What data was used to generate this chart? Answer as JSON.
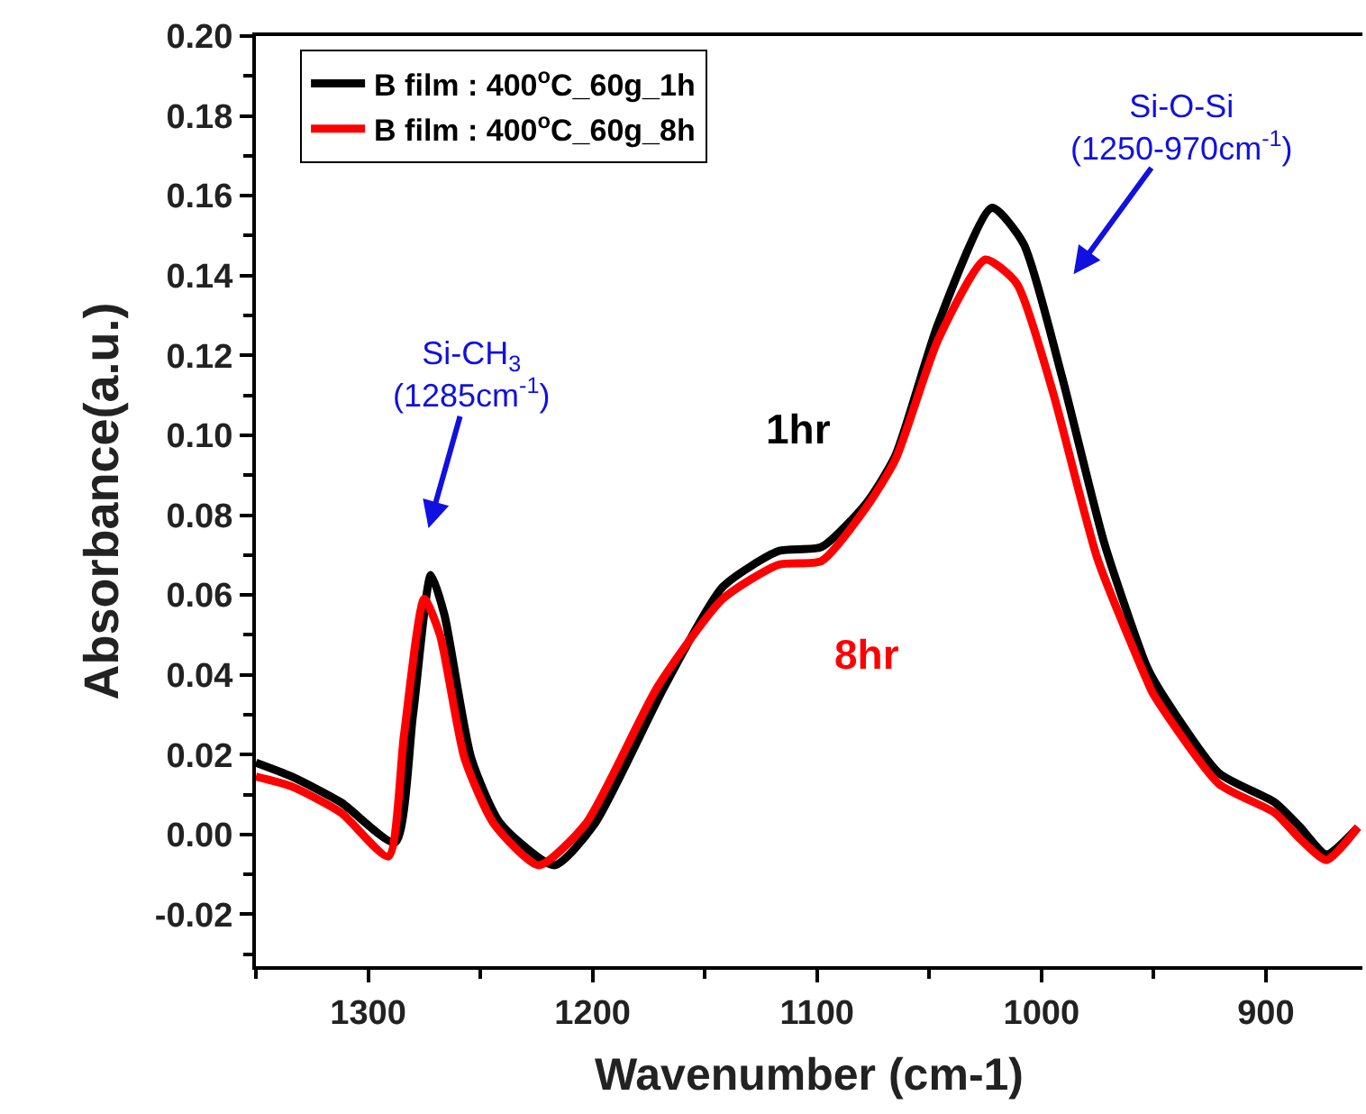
{
  "chart_data": {
    "type": "line",
    "xlabel": "Wavenumber (cm-1)",
    "ylabel": "Absorbance(a.u.)",
    "series": [
      {
        "name": "B film : 400$^{o}$C_60g_1h",
        "color": "#000000",
        "x": [
          1350,
          1334,
          1312,
          1288,
          1280,
          1272,
          1266,
          1254,
          1241,
          1217,
          1199,
          1168,
          1142,
          1117,
          1098,
          1078,
          1065,
          1046,
          1022,
          1008,
          991,
          972,
          953,
          946,
          921,
          896,
          885,
          873,
          859
        ],
        "values": [
          0.018,
          0.0145,
          0.008,
          -0.002,
          0.03,
          0.065,
          0.055,
          0.019,
          0.0027,
          -0.0077,
          0.0027,
          0.037,
          0.062,
          0.071,
          0.072,
          0.083,
          0.095,
          0.128,
          0.157,
          0.148,
          0.115,
          0.073,
          0.042,
          0.035,
          0.0154,
          0.008,
          0.002,
          -0.005,
          0.0018
        ]
      },
      {
        "name": "B film : 400$^{o}$C_60g_8h",
        "color": "#ff0000",
        "x": [
          1350,
          1334,
          1312,
          1291,
          1284,
          1275,
          1268,
          1257,
          1244,
          1224,
          1203,
          1171,
          1142,
          1117,
          1098,
          1078,
          1065,
          1046,
          1025,
          1011,
          995,
          975,
          953,
          950,
          921,
          896,
          885,
          873,
          859
        ],
        "values": [
          0.0145,
          0.012,
          0.0054,
          -0.0055,
          0.025,
          0.059,
          0.05,
          0.019,
          0.0027,
          -0.0077,
          0.0027,
          0.037,
          0.059,
          0.0676,
          0.0685,
          0.082,
          0.094,
          0.124,
          0.144,
          0.138,
          0.111,
          0.069,
          0.0386,
          0.035,
          0.0127,
          0.0054,
          -0.001,
          -0.0064,
          0.0018
        ]
      }
    ],
    "xlim": [
      1350,
      857
    ],
    "xticks": [
      {
        "value": 1350,
        "label": null
      },
      1300,
      {
        "value": 1250,
        "label": null
      },
      1200,
      {
        "value": 1150,
        "label": null
      },
      1100,
      {
        "value": 1050,
        "label": null
      },
      1000,
      {
        "value": 950,
        "label": null
      },
      900
    ],
    "ylim": [
      -0.033,
      0.2
    ],
    "yticks": [
      {
        "value": -0.03,
        "label": null
      },
      {
        "value": -0.02,
        "label": "-0.02"
      },
      {
        "value": -0.01,
        "label": null
      },
      {
        "value": 0,
        "label": "0.00"
      },
      {
        "value": 0.01,
        "label": null
      },
      {
        "value": 0.02,
        "label": "0.02"
      },
      {
        "value": 0.03,
        "label": null
      },
      {
        "value": 0.04,
        "label": "0.04"
      },
      {
        "value": 0.05,
        "label": null
      },
      {
        "value": 0.06,
        "label": "0.06"
      },
      {
        "value": 0.07,
        "label": null
      },
      {
        "value": 0.08,
        "label": "0.08"
      },
      {
        "value": 0.09,
        "label": null
      },
      {
        "value": 0.1,
        "label": "0.10"
      },
      {
        "value": 0.11,
        "label": null
      },
      {
        "value": 0.12,
        "label": "0.12"
      },
      {
        "value": 0.13,
        "label": null
      },
      {
        "value": 0.14,
        "label": "0.14"
      },
      {
        "value": 0.15,
        "label": null
      },
      {
        "value": 0.16,
        "label": "0.16"
      },
      {
        "value": 0.17,
        "label": null
      },
      {
        "value": 0.18,
        "label": "0.18"
      },
      {
        "value": 0.19,
        "label": null
      },
      {
        "value": 0.2,
        "label": "0.20"
      }
    ],
    "annotations": [
      "Si-CH$_{3}$\n(1285cm$^{-1}$)",
      "Si-O-Si\n(1250-970cm$^{-1}$)",
      "1hr",
      "8hr"
    ],
    "legend": "top left",
    "marker": "none",
    "line_style": "solid"
  }
}
